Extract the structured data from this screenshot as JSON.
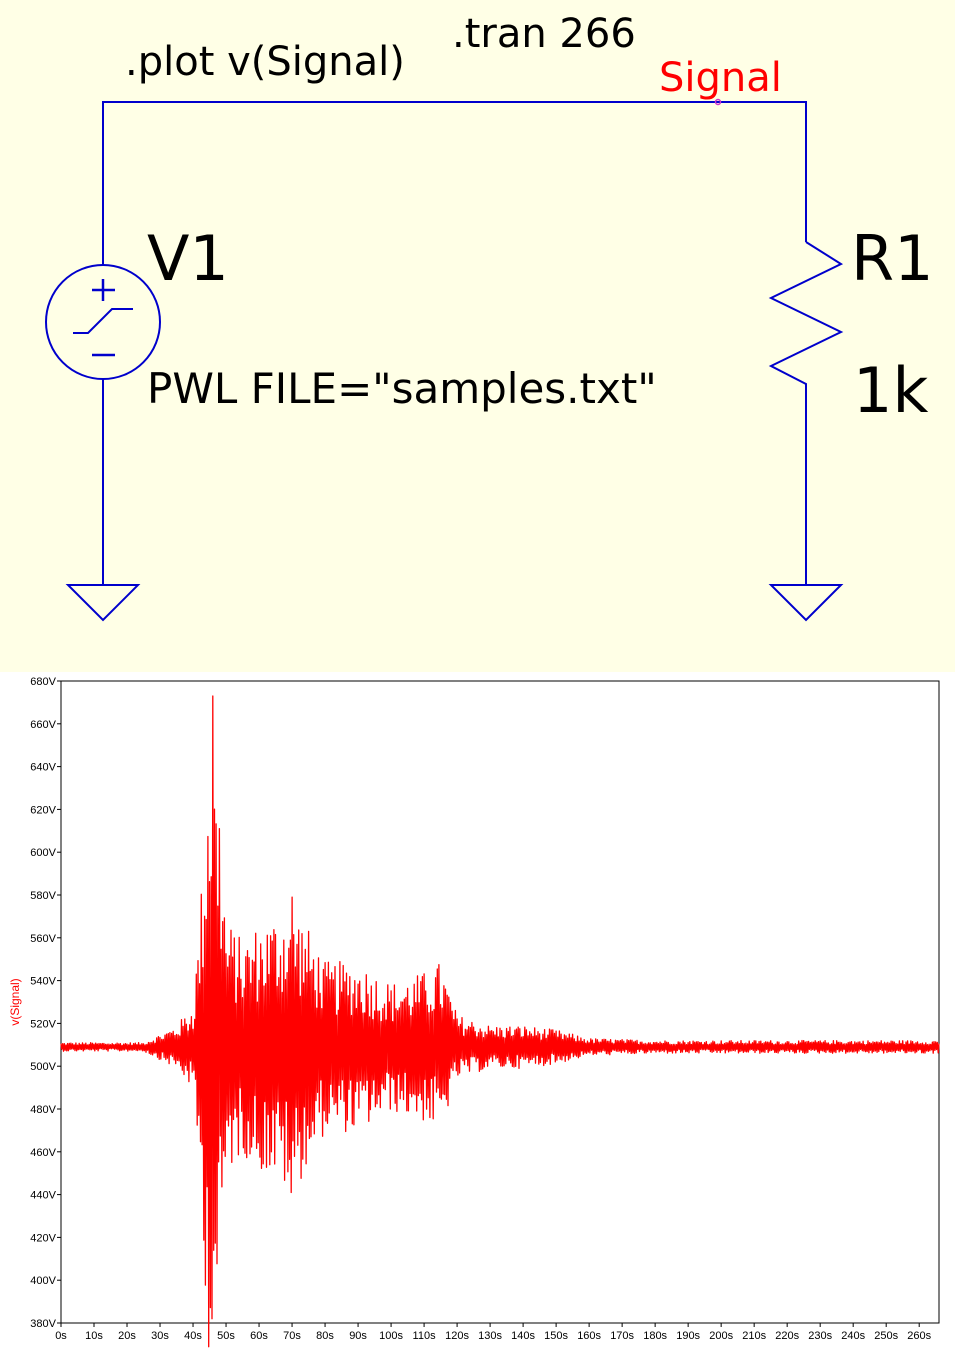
{
  "schematic": {
    "plot_directive": ".plot v(Signal)",
    "tran_directive": ".tran 266",
    "net_label": "Signal",
    "source": {
      "name": "V1",
      "value": "PWL FILE=\"samples.txt\""
    },
    "resistor": {
      "name": "R1",
      "value": "1k"
    },
    "colors": {
      "background": "#ffffe6",
      "wire": "#0000cc",
      "net_label": "#ff0000",
      "text": "#000000"
    }
  },
  "chart_data": {
    "type": "line",
    "title": "",
    "xlabel": "",
    "ylabel": "v(Signal)",
    "xlim": [
      0,
      266
    ],
    "ylim": [
      380,
      680
    ],
    "x_ticks": [
      "0s",
      "10s",
      "20s",
      "30s",
      "40s",
      "50s",
      "60s",
      "70s",
      "80s",
      "90s",
      "100s",
      "110s",
      "120s",
      "130s",
      "140s",
      "150s",
      "160s",
      "170s",
      "180s",
      "190s",
      "200s",
      "210s",
      "220s",
      "230s",
      "240s",
      "250s",
      "260s"
    ],
    "y_ticks": [
      "380V",
      "400V",
      "420V",
      "440V",
      "460V",
      "480V",
      "500V",
      "520V",
      "540V",
      "560V",
      "580V",
      "600V",
      "620V",
      "640V",
      "660V",
      "680V"
    ],
    "grid": false,
    "series": [
      {
        "name": "v(Signal)",
        "color": "#ff0000",
        "baseline": 509,
        "envelope": {
          "t": [
            0,
            25,
            30,
            35,
            40,
            42,
            44,
            45,
            46,
            48,
            50,
            55,
            60,
            65,
            70,
            75,
            80,
            90,
            100,
            110,
            115,
            120,
            130,
            140,
            150,
            160,
            180,
            266
          ],
          "amplitude": [
            2,
            2,
            6,
            10,
            20,
            60,
            120,
            150,
            140,
            120,
            60,
            50,
            58,
            62,
            70,
            55,
            40,
            40,
            30,
            35,
            40,
            15,
            10,
            10,
            8,
            4,
            3,
            3
          ]
        },
        "peaks": [
          {
            "x": 46,
            "y": 673
          },
          {
            "x": 46,
            "y": 382
          },
          {
            "x": 70,
            "y": 579
          },
          {
            "x": 70,
            "y": 441
          }
        ]
      }
    ]
  }
}
